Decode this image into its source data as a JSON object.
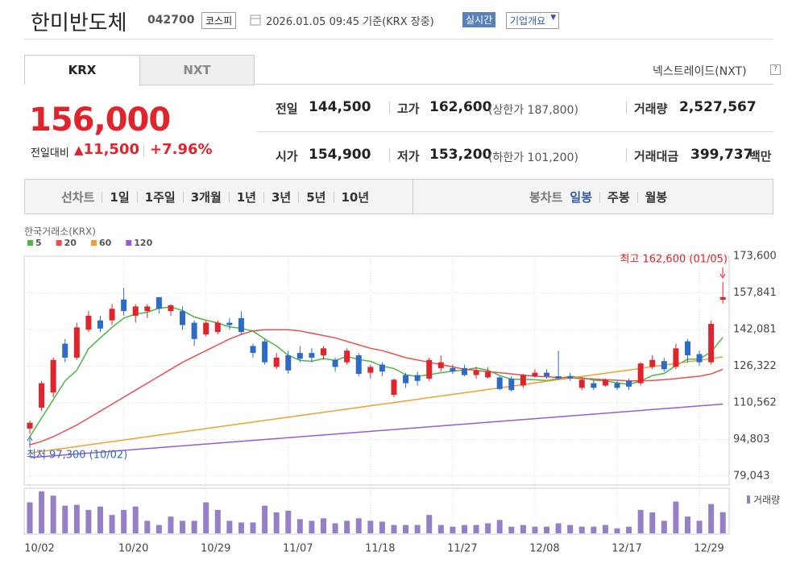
{
  "header": {
    "name": "한미반도체",
    "code": "042700",
    "market": "코스피",
    "timestamp": "2026.01.05 09:45 기준(KRX 장중)",
    "realtime": "실시간",
    "company_info": "기업개요"
  },
  "tabs": [
    "KRX",
    "NXT"
  ],
  "nxt_link": "넥스트레이드(NXT)",
  "quote": {
    "price": "156,000",
    "change_label": "전일대비",
    "change": "11,500",
    "change_rate": "+7.96%"
  },
  "stats": [
    {
      "label": "전일",
      "value": "144,500"
    },
    {
      "label": "고가",
      "value": "162,600",
      "sub": "(상한가 187,800)"
    },
    {
      "label": "거래량",
      "value": "2,527,567"
    },
    {
      "label": "시가",
      "value": "154,900"
    },
    {
      "label": "저가",
      "value": "153,200",
      "sub": "(하한가 101,200)"
    },
    {
      "label": "거래대금",
      "value": "399,737",
      "unit": "백만"
    }
  ],
  "periods": {
    "line_label": "선차트",
    "line_items": [
      "1일",
      "1주일",
      "3개월",
      "1년",
      "3년",
      "5년",
      "10년"
    ],
    "candle_label": "봉차트",
    "candle_items": [
      "일봉",
      "주봉",
      "월봉"
    ]
  },
  "chart_data": {
    "type": "candlestick",
    "source": "한국거래소(KRX)",
    "up_color": "#e0242b",
    "down_color": "#2e6bc6",
    "volume_color": "#9580c8",
    "volume_label": "거래량",
    "annotations": {
      "high": "최고 162,600 (01/05)",
      "low": "최저 97,300 (10/02)"
    },
    "ylim": [
      79043,
      173600
    ],
    "yticks": [
      {
        "value": 173600,
        "label": "173,600"
      },
      {
        "value": 157841,
        "label": "157,841"
      },
      {
        "value": 142081,
        "label": "142,081"
      },
      {
        "value": 126322,
        "label": "126,322"
      },
      {
        "value": 110562,
        "label": "110,562"
      },
      {
        "value": 94803,
        "label": "94,803"
      },
      {
        "value": 79043,
        "label": "79,043"
      }
    ],
    "categories": [
      "10/02",
      null,
      null,
      null,
      null,
      null,
      null,
      null,
      "10/20",
      null,
      null,
      null,
      null,
      null,
      null,
      "10/29",
      null,
      null,
      null,
      null,
      null,
      null,
      "11/07",
      null,
      null,
      null,
      null,
      null,
      null,
      "11/18",
      null,
      null,
      null,
      null,
      null,
      null,
      "11/27",
      null,
      null,
      null,
      null,
      null,
      null,
      "12/08",
      null,
      null,
      null,
      null,
      null,
      null,
      "12/17",
      null,
      null,
      null,
      null,
      null,
      null,
      "12/29",
      null,
      null
    ],
    "open": [
      99500,
      108500,
      115000,
      136000,
      130000,
      142000,
      146000,
      146000,
      155000,
      148000,
      150000,
      156000,
      150000,
      150000,
      145000,
      140000,
      141000,
      145000,
      147000,
      135000,
      137000,
      126000,
      131000,
      132000,
      132000,
      131000,
      129000,
      128000,
      131000,
      123500,
      127000,
      114000,
      122500,
      122500,
      121000,
      125500,
      125500,
      125500,
      122500,
      121500,
      121500,
      121000,
      118000,
      122000,
      123500,
      122000,
      122000,
      117000,
      119000,
      118000,
      119000,
      120000,
      119000,
      126000,
      128500,
      126000,
      137000,
      131500,
      128000,
      154900
    ],
    "high": [
      103000,
      120000,
      130000,
      138000,
      145000,
      150000,
      148000,
      153000,
      160000,
      153000,
      153000,
      156000,
      153000,
      152000,
      146000,
      146000,
      146000,
      147000,
      150000,
      136000,
      138000,
      132000,
      133000,
      135000,
      134000,
      135000,
      130000,
      134000,
      132000,
      127000,
      128000,
      121000,
      123500,
      124000,
      130000,
      131000,
      127000,
      127000,
      126000,
      126000,
      122000,
      122000,
      123000,
      125000,
      125000,
      133000,
      123500,
      121000,
      120500,
      121000,
      120000,
      121000,
      128000,
      131000,
      130000,
      136000,
      138000,
      133000,
      146000,
      162600
    ],
    "low": [
      97300,
      107000,
      113000,
      128000,
      129000,
      141000,
      141000,
      144000,
      148000,
      145000,
      147000,
      149000,
      148000,
      142000,
      135000,
      139000,
      140000,
      142000,
      140000,
      130000,
      127000,
      125000,
      123000,
      128000,
      128000,
      129000,
      124000,
      127000,
      122000,
      121000,
      122000,
      113000,
      117000,
      118000,
      120000,
      124000,
      123000,
      122000,
      121000,
      121000,
      116000,
      115500,
      117000,
      121500,
      121000,
      120500,
      120000,
      116000,
      116000,
      117500,
      116000,
      116000,
      118000,
      125000,
      124000,
      125000,
      128000,
      126500,
      127000,
      153200
    ],
    "close": [
      102000,
      119000,
      129000,
      130000,
      143000,
      148000,
      142500,
      151000,
      150000,
      152000,
      152000,
      151000,
      152500,
      144000,
      138000,
      145000,
      145000,
      144000,
      141000,
      132000,
      128000,
      130000,
      124500,
      129500,
      130000,
      134000,
      126000,
      133000,
      123000,
      126000,
      124000,
      120500,
      119000,
      120000,
      129000,
      128000,
      124000,
      122500,
      124500,
      124000,
      116500,
      116000,
      122500,
      123500,
      122000,
      121000,
      121000,
      120500,
      117000,
      120500,
      117000,
      117500,
      127500,
      129000,
      125000,
      134000,
      131000,
      128000,
      144500,
      156000
    ],
    "volume": [
      3700000,
      5000000,
      4500000,
      3300000,
      3400000,
      2800000,
      3200000,
      2200000,
      2800000,
      3200000,
      1500000,
      1000000,
      2000000,
      1500000,
      1500000,
      3700000,
      2800000,
      1500000,
      1300000,
      1300000,
      3300000,
      2500000,
      2700000,
      1700000,
      1500000,
      1800000,
      1200000,
      1500000,
      1800000,
      1500000,
      1400000,
      1000000,
      1000000,
      1000000,
      2200000,
      1000000,
      800000,
      1000000,
      1000000,
      1200000,
      1600000,
      800000,
      1000000,
      800000,
      800000,
      1200000,
      1000000,
      800000,
      800000,
      1000000,
      600000,
      800000,
      2800000,
      2500000,
      1500000,
      3800000,
      2000000,
      1500000,
      3500000,
      2527567
    ],
    "series": [
      {
        "name": "5",
        "color": "#4cb848",
        "values": [
          96000,
          104000,
          112000,
          120000,
          124600,
          133800,
          138500,
          143000,
          147000,
          148700,
          149500,
          151300,
          151700,
          150300,
          147500,
          146100,
          144900,
          143200,
          142600,
          141400,
          138000,
          135000,
          131000,
          128800,
          128400,
          129600,
          128800,
          130500,
          129200,
          128400,
          126400,
          125300,
          122600,
          121900,
          122700,
          123500,
          124200,
          124700,
          125600,
          124600,
          122300,
          120700,
          120700,
          120500,
          120100,
          121000,
          122000,
          121400,
          120300,
          120000,
          119200,
          118500,
          119900,
          122300,
          123200,
          126600,
          129300,
          129400,
          132500,
          138700
        ]
      },
      {
        "name": "20",
        "color": "#e8504f",
        "values": [
          92500,
          94000,
          96000,
          98500,
          101000,
          104000,
          107000,
          110000,
          113000,
          116000,
          119000,
          122000,
          125000,
          128000,
          130500,
          133000,
          135500,
          138000,
          140000,
          141500,
          142000,
          142000,
          142000,
          141500,
          140500,
          139500,
          138500,
          137000,
          135500,
          134000,
          133000,
          131500,
          130000,
          129000,
          128000,
          127000,
          126000,
          125000,
          124500,
          124000,
          123500,
          123000,
          122500,
          122000,
          121800,
          121500,
          121300,
          121000,
          120800,
          120500,
          120300,
          120000,
          120000,
          120200,
          120500,
          121000,
          121500,
          122000,
          123000,
          125000
        ]
      },
      {
        "name": "60",
        "color": "#f0a032",
        "values": [
          89000,
          89700,
          90400,
          91100,
          91800,
          92500,
          93200,
          93900,
          94600,
          95300,
          96000,
          96700,
          97400,
          98100,
          98800,
          99500,
          100200,
          100900,
          101600,
          102300,
          103000,
          103700,
          104400,
          105100,
          105800,
          106500,
          107200,
          107900,
          108600,
          109300,
          110000,
          110700,
          111400,
          112100,
          112800,
          113500,
          114200,
          114900,
          115600,
          116300,
          117000,
          117700,
          118400,
          119100,
          119800,
          120500,
          121200,
          121900,
          122600,
          123300,
          124000,
          124700,
          125400,
          126100,
          126800,
          127500,
          128200,
          128900,
          129600,
          130300
        ]
      },
      {
        "name": "120",
        "color": "#9a5bd2",
        "values": [
          87000,
          87390,
          87780,
          88170,
          88560,
          88950,
          89340,
          89730,
          90120,
          90510,
          90900,
          91290,
          91680,
          92070,
          92460,
          92850,
          93240,
          93630,
          94020,
          94410,
          94800,
          95190,
          95580,
          95970,
          96360,
          96750,
          97140,
          97530,
          97920,
          98310,
          98700,
          99090,
          99480,
          99870,
          100260,
          100650,
          101040,
          101430,
          101820,
          102210,
          102600,
          102990,
          103380,
          103770,
          104160,
          104550,
          104940,
          105330,
          105720,
          106110,
          106500,
          106890,
          107280,
          107670,
          108060,
          108450,
          108840,
          109230,
          109620,
          110010
        ]
      }
    ]
  }
}
